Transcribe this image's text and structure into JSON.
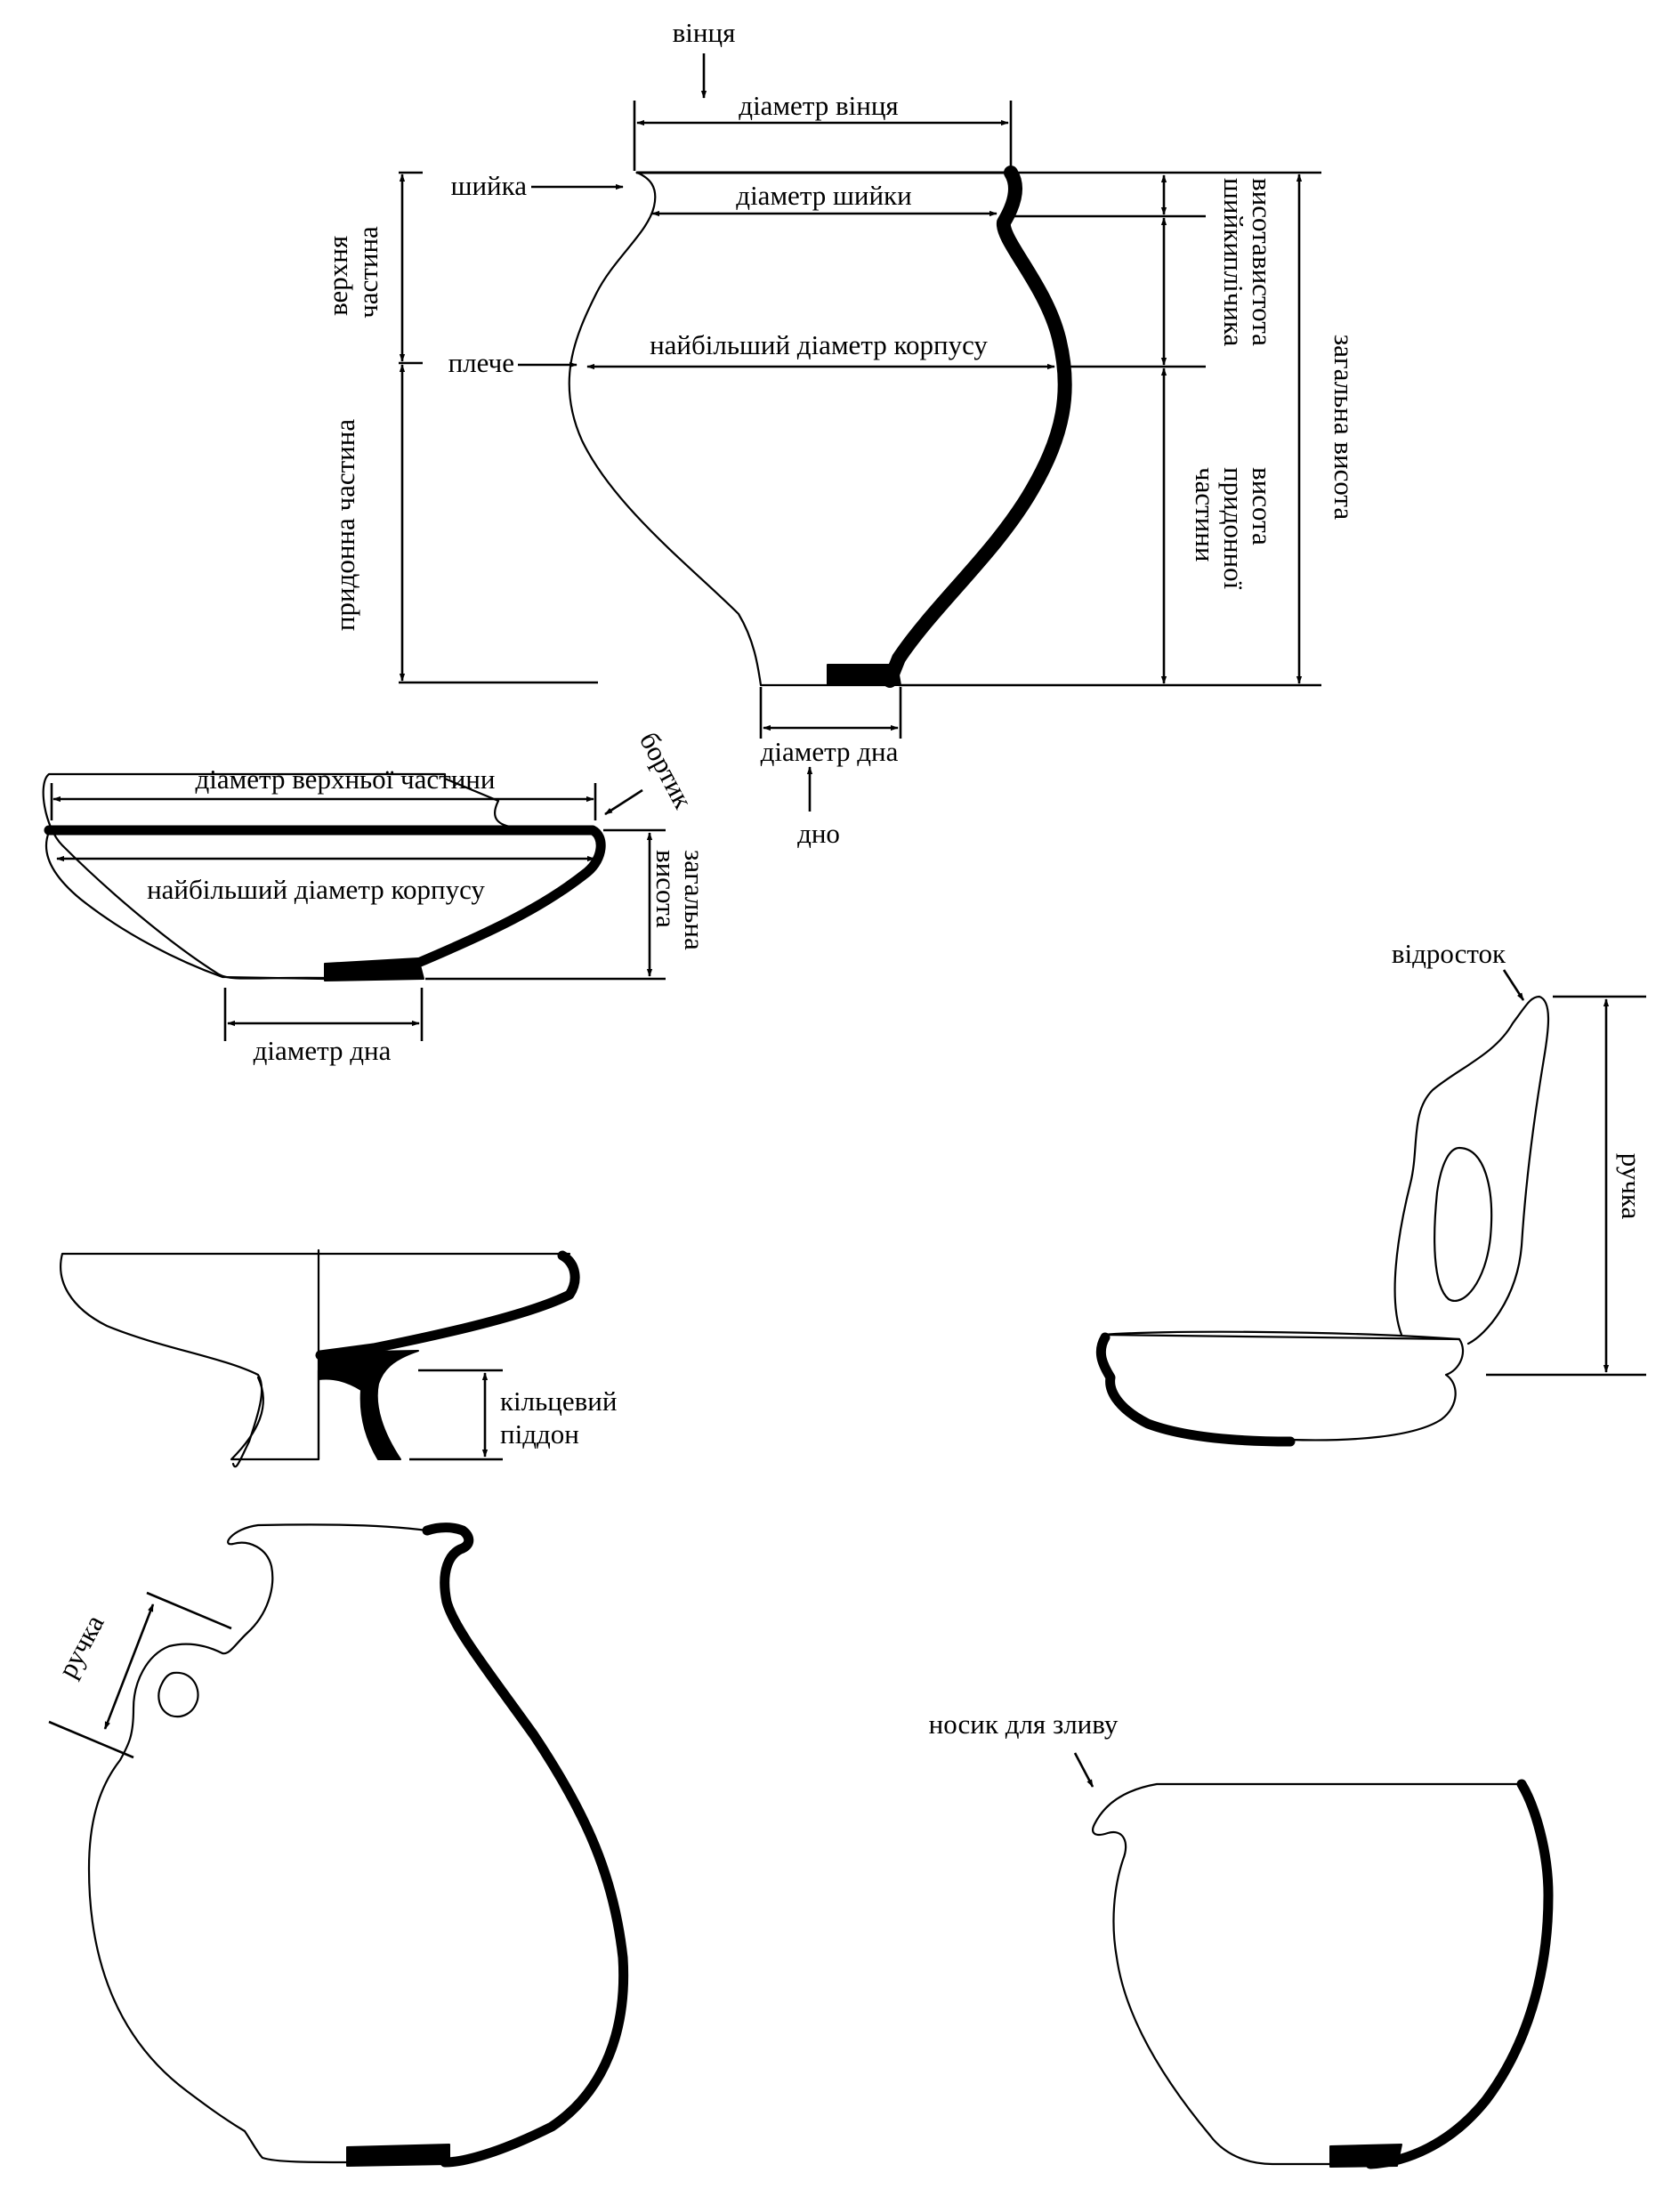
{
  "labels": {
    "rim": "вінця",
    "rim_diameter": "діаметр вінця",
    "neck": "шийка",
    "neck_diameter": "діаметр шийки",
    "neck_height": "висота шийки",
    "shoulder_height": "вистота плічика",
    "total_height": "загальна висота",
    "upper_part": "верхня частина",
    "shoulder": "плече",
    "max_body_diameter": "найбільший діаметр корпусу",
    "bottom_part": "придонна частина",
    "bottom_part_height": "висота придонної частини",
    "base_diameter": "діаметр дна",
    "base": "дно",
    "bowl_top_diameter": "діаметр верхньої частини",
    "bowl_edge": "бортик",
    "bowl_max_diameter": "найбільший діаметр корпусу",
    "bowl_total_height": "загальна висота",
    "bowl_base_diameter": "діаметр дна",
    "projection": "відросток",
    "handle_right": "ручка",
    "ring_foot": "кільцевий піддон",
    "ring_foot_line1": "кільцевий",
    "ring_foot_line2": "піддон",
    "handle_jug": "ручка",
    "spout": "носик для зливу"
  }
}
